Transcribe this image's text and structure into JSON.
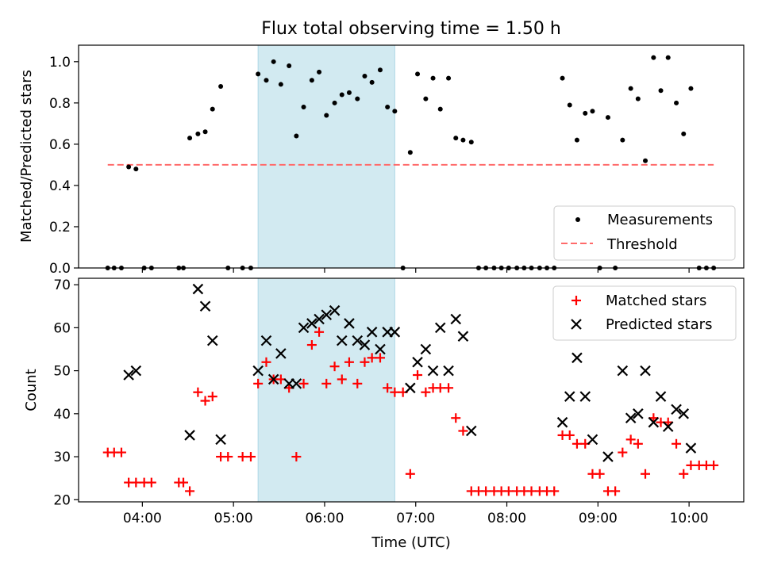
{
  "figure": {
    "title": "Flux total observing time = 1.50 h",
    "xlabel": "Time (UTC)",
    "x_ticks": [
      "04:00",
      "05:00",
      "06:00",
      "07:00",
      "08:00",
      "09:00",
      "10:00"
    ]
  },
  "colors": {
    "shade": "#add8e6",
    "threshold": "#ff6a6a",
    "matched": "#ff0000",
    "predicted": "#000000",
    "measurement": "#000000"
  },
  "chart_data": [
    {
      "type": "scatter",
      "ylabel": "Matched/Predicted stars",
      "x_unit": "hours UTC",
      "xlim": [
        3.3,
        10.6
      ],
      "ylim": [
        0,
        1.08
      ],
      "y_ticks": [
        "0.0",
        "0.2",
        "0.4",
        "0.6",
        "0.8",
        "1.0"
      ],
      "shaded_span": [
        5.27,
        6.77
      ],
      "legend_position": "lower right",
      "series": [
        {
          "name": "Measurements",
          "points": [
            [
              3.62,
              0
            ],
            [
              3.69,
              0
            ],
            [
              3.77,
              0
            ],
            [
              3.85,
              0.49
            ],
            [
              3.93,
              0.48
            ],
            [
              4.02,
              0
            ],
            [
              4.1,
              0
            ],
            [
              4.4,
              0
            ],
            [
              4.45,
              0
            ],
            [
              4.52,
              0.63
            ],
            [
              4.61,
              0.65
            ],
            [
              4.69,
              0.66
            ],
            [
              4.77,
              0.77
            ],
            [
              4.86,
              0.88
            ],
            [
              4.94,
              0
            ],
            [
              5.1,
              0
            ],
            [
              5.19,
              0
            ],
            [
              5.27,
              0.94
            ],
            [
              5.36,
              0.91
            ],
            [
              5.44,
              1.0
            ],
            [
              5.52,
              0.89
            ],
            [
              5.61,
              0.98
            ],
            [
              5.69,
              0.64
            ],
            [
              5.77,
              0.78
            ],
            [
              5.86,
              0.91
            ],
            [
              5.94,
              0.95
            ],
            [
              6.02,
              0.74
            ],
            [
              6.11,
              0.8
            ],
            [
              6.19,
              0.84
            ],
            [
              6.27,
              0.85
            ],
            [
              6.36,
              0.82
            ],
            [
              6.44,
              0.93
            ],
            [
              6.52,
              0.9
            ],
            [
              6.61,
              0.96
            ],
            [
              6.69,
              0.78
            ],
            [
              6.77,
              0.76
            ],
            [
              6.86,
              0
            ],
            [
              6.94,
              0.56
            ],
            [
              7.02,
              0.94
            ],
            [
              7.11,
              0.82
            ],
            [
              7.19,
              0.92
            ],
            [
              7.27,
              0.77
            ],
            [
              7.36,
              0.92
            ],
            [
              7.44,
              0.63
            ],
            [
              7.52,
              0.62
            ],
            [
              7.61,
              0.61
            ],
            [
              7.69,
              0
            ],
            [
              7.77,
              0
            ],
            [
              7.86,
              0
            ],
            [
              7.94,
              0
            ],
            [
              8.02,
              0
            ],
            [
              8.11,
              0
            ],
            [
              8.19,
              0
            ],
            [
              8.27,
              0
            ],
            [
              8.36,
              0
            ],
            [
              8.44,
              0
            ],
            [
              8.52,
              0
            ],
            [
              8.61,
              0.92
            ],
            [
              8.69,
              0.79
            ],
            [
              8.77,
              0.62
            ],
            [
              8.86,
              0.75
            ],
            [
              8.94,
              0.76
            ],
            [
              9.02,
              0
            ],
            [
              9.11,
              0.73
            ],
            [
              9.19,
              0
            ],
            [
              9.27,
              0.62
            ],
            [
              9.36,
              0.87
            ],
            [
              9.44,
              0.82
            ],
            [
              9.52,
              0.52
            ],
            [
              9.61,
              1.02
            ],
            [
              9.69,
              0.86
            ],
            [
              9.77,
              1.02
            ],
            [
              9.86,
              0.8
            ],
            [
              9.94,
              0.65
            ],
            [
              10.02,
              0.87
            ],
            [
              10.11,
              0
            ],
            [
              10.19,
              0
            ],
            [
              10.27,
              0
            ]
          ]
        },
        {
          "name": "Threshold",
          "style": "dashed",
          "y": 0.5,
          "x_range": [
            3.62,
            10.27
          ]
        }
      ]
    },
    {
      "type": "scatter",
      "ylabel": "Count",
      "x_unit": "hours UTC",
      "xlim": [
        3.3,
        10.6
      ],
      "ylim": [
        19.5,
        71.5
      ],
      "y_ticks": [
        "20",
        "30",
        "40",
        "50",
        "60",
        "70"
      ],
      "shaded_span": [
        5.27,
        6.77
      ],
      "legend_position": "upper right",
      "series": [
        {
          "name": "Matched stars",
          "marker": "plus",
          "points": [
            [
              3.62,
              31
            ],
            [
              3.69,
              31
            ],
            [
              3.77,
              31
            ],
            [
              3.85,
              24
            ],
            [
              3.93,
              24
            ],
            [
              4.02,
              24
            ],
            [
              4.1,
              24
            ],
            [
              4.4,
              24
            ],
            [
              4.45,
              24
            ],
            [
              4.52,
              22
            ],
            [
              4.61,
              45
            ],
            [
              4.69,
              43
            ],
            [
              4.77,
              44
            ],
            [
              4.86,
              30
            ],
            [
              4.94,
              30
            ],
            [
              5.1,
              30
            ],
            [
              5.19,
              30
            ],
            [
              5.27,
              47
            ],
            [
              5.36,
              52
            ],
            [
              5.44,
              48
            ],
            [
              5.52,
              48
            ],
            [
              5.61,
              46
            ],
            [
              5.69,
              30
            ],
            [
              5.77,
              47
            ],
            [
              5.86,
              56
            ],
            [
              5.94,
              59
            ],
            [
              6.02,
              47
            ],
            [
              6.11,
              51
            ],
            [
              6.19,
              48
            ],
            [
              6.27,
              52
            ],
            [
              6.36,
              47
            ],
            [
              6.44,
              52
            ],
            [
              6.52,
              53
            ],
            [
              6.61,
              53
            ],
            [
              6.69,
              46
            ],
            [
              6.77,
              45
            ],
            [
              6.86,
              45
            ],
            [
              6.94,
              26
            ],
            [
              7.02,
              49
            ],
            [
              7.11,
              45
            ],
            [
              7.19,
              46
            ],
            [
              7.27,
              46
            ],
            [
              7.36,
              46
            ],
            [
              7.44,
              39
            ],
            [
              7.52,
              36
            ],
            [
              7.61,
              22
            ],
            [
              7.69,
              22
            ],
            [
              7.77,
              22
            ],
            [
              7.86,
              22
            ],
            [
              7.94,
              22
            ],
            [
              8.02,
              22
            ],
            [
              8.11,
              22
            ],
            [
              8.19,
              22
            ],
            [
              8.27,
              22
            ],
            [
              8.36,
              22
            ],
            [
              8.44,
              22
            ],
            [
              8.52,
              22
            ],
            [
              8.61,
              35
            ],
            [
              8.69,
              35
            ],
            [
              8.77,
              33
            ],
            [
              8.86,
              33
            ],
            [
              8.94,
              26
            ],
            [
              9.02,
              26
            ],
            [
              9.11,
              22
            ],
            [
              9.19,
              22
            ],
            [
              9.27,
              31
            ],
            [
              9.36,
              34
            ],
            [
              9.44,
              33
            ],
            [
              9.52,
              26
            ],
            [
              9.61,
              39
            ],
            [
              9.69,
              38
            ],
            [
              9.77,
              38
            ],
            [
              9.86,
              33
            ],
            [
              9.94,
              26
            ],
            [
              10.02,
              28
            ],
            [
              10.11,
              28
            ],
            [
              10.19,
              28
            ],
            [
              10.27,
              28
            ]
          ]
        },
        {
          "name": "Predicted stars",
          "marker": "x",
          "points": [
            [
              3.85,
              49
            ],
            [
              3.93,
              50
            ],
            [
              4.52,
              35
            ],
            [
              4.61,
              69
            ],
            [
              4.69,
              65
            ],
            [
              4.77,
              57
            ],
            [
              4.86,
              34
            ],
            [
              5.27,
              50
            ],
            [
              5.36,
              57
            ],
            [
              5.44,
              48
            ],
            [
              5.52,
              54
            ],
            [
              5.61,
              47
            ],
            [
              5.69,
              47
            ],
            [
              5.77,
              60
            ],
            [
              5.86,
              61
            ],
            [
              5.94,
              62
            ],
            [
              6.02,
              63
            ],
            [
              6.11,
              64
            ],
            [
              6.19,
              57
            ],
            [
              6.27,
              61
            ],
            [
              6.36,
              57
            ],
            [
              6.44,
              56
            ],
            [
              6.52,
              59
            ],
            [
              6.61,
              55
            ],
            [
              6.69,
              59
            ],
            [
              6.77,
              59
            ],
            [
              6.94,
              46
            ],
            [
              7.02,
              52
            ],
            [
              7.11,
              55
            ],
            [
              7.19,
              50
            ],
            [
              7.27,
              60
            ],
            [
              7.36,
              50
            ],
            [
              7.44,
              62
            ],
            [
              7.52,
              58
            ],
            [
              7.61,
              36
            ],
            [
              8.61,
              38
            ],
            [
              8.69,
              44
            ],
            [
              8.77,
              53
            ],
            [
              8.86,
              44
            ],
            [
              8.94,
              34
            ],
            [
              9.11,
              30
            ],
            [
              9.27,
              50
            ],
            [
              9.36,
              39
            ],
            [
              9.44,
              40
            ],
            [
              9.52,
              50
            ],
            [
              9.61,
              38
            ],
            [
              9.69,
              44
            ],
            [
              9.77,
              37
            ],
            [
              9.86,
              41
            ],
            [
              9.94,
              40
            ],
            [
              10.02,
              32
            ]
          ]
        }
      ]
    }
  ]
}
